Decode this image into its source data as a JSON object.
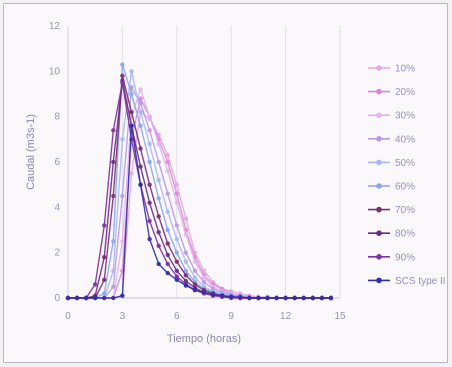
{
  "chart_data": {
    "type": "line",
    "xlabel": "Tiempo (horas)",
    "ylabel": "Caudal (m3s-1)",
    "xlim": [
      0,
      15
    ],
    "ylim": [
      0,
      12
    ],
    "xticks": [
      0,
      3,
      6,
      9,
      12,
      15
    ],
    "yticks": [
      0,
      2,
      4,
      6,
      8,
      10,
      12
    ],
    "grid": "vertical",
    "legend": "right",
    "x": [
      0,
      0.5,
      1,
      1.5,
      2,
      2.5,
      3,
      3.5,
      4,
      4.5,
      5,
      5.5,
      6,
      6.5,
      7,
      7.5,
      8,
      8.5,
      9,
      9.5,
      10,
      10.5,
      11,
      11.5,
      12,
      12.5,
      13,
      13.5,
      14,
      14.5
    ],
    "series": [
      {
        "name": "10%",
        "color": "#e6a8e0",
        "values": [
          0,
          0,
          0,
          0,
          0,
          0,
          0.1,
          5.5,
          8.2,
          7.9,
          7.2,
          6.3,
          5.0,
          3.5,
          2.0,
          1.2,
          0.7,
          0.4,
          0.3,
          0.2,
          0.1,
          0.05,
          0.05,
          0,
          0,
          0,
          0,
          0,
          0,
          0
        ]
      },
      {
        "name": "20%",
        "color": "#d98ad8",
        "values": [
          0,
          0,
          0,
          0,
          0,
          0,
          1.2,
          7.0,
          8.8,
          8.0,
          7.0,
          6.0,
          4.6,
          3.0,
          1.8,
          1.0,
          0.6,
          0.4,
          0.2,
          0.1,
          0.05,
          0,
          0,
          0,
          0,
          0,
          0,
          0,
          0,
          0
        ]
      },
      {
        "name": "30%",
        "color": "#e3b4ea",
        "values": [
          0,
          0,
          0,
          0,
          0,
          0,
          2.5,
          8.0,
          9.2,
          8.0,
          6.8,
          5.6,
          4.2,
          2.8,
          1.6,
          0.9,
          0.5,
          0.3,
          0.2,
          0.1,
          0.05,
          0,
          0,
          0,
          0,
          0,
          0,
          0,
          0,
          0
        ]
      },
      {
        "name": "40%",
        "color": "#b99ae6",
        "values": [
          0,
          0,
          0,
          0,
          0,
          0.5,
          4.5,
          9.3,
          8.6,
          7.4,
          6.0,
          4.6,
          3.2,
          2.0,
          1.2,
          0.7,
          0.4,
          0.25,
          0.15,
          0.1,
          0.05,
          0,
          0,
          0,
          0,
          0,
          0,
          0,
          0,
          0
        ]
      },
      {
        "name": "50%",
        "color": "#a9b8f0",
        "values": [
          0,
          0,
          0,
          0,
          0,
          1.2,
          7.0,
          10.0,
          8.2,
          6.8,
          5.2,
          3.8,
          2.6,
          1.6,
          0.9,
          0.5,
          0.3,
          0.2,
          0.1,
          0.05,
          0,
          0,
          0,
          0,
          0,
          0,
          0,
          0,
          0,
          0
        ]
      },
      {
        "name": "60%",
        "color": "#8aa6ec",
        "values": [
          0,
          0,
          0,
          0,
          0.2,
          2.5,
          10.3,
          9.0,
          7.6,
          6.0,
          4.4,
          3.0,
          2.0,
          1.2,
          0.7,
          0.4,
          0.25,
          0.15,
          0.1,
          0.05,
          0,
          0,
          0,
          0,
          0,
          0,
          0,
          0,
          0,
          0
        ]
      },
      {
        "name": "70%",
        "color": "#7a2f6e",
        "values": [
          0,
          0,
          0,
          0,
          0.8,
          4.5,
          9.8,
          8.2,
          6.6,
          5.0,
          3.6,
          2.4,
          1.6,
          1.0,
          0.6,
          0.35,
          0.2,
          0.1,
          0.05,
          0,
          0,
          0,
          0,
          0,
          0,
          0,
          0,
          0,
          0,
          0
        ]
      },
      {
        "name": "80%",
        "color": "#6a2a86",
        "values": [
          0,
          0,
          0,
          0.1,
          1.8,
          6.0,
          9.6,
          7.6,
          5.8,
          4.2,
          2.9,
          1.9,
          1.2,
          0.75,
          0.45,
          0.25,
          0.15,
          0.1,
          0.05,
          0,
          0,
          0,
          0,
          0,
          0,
          0,
          0,
          0,
          0,
          0
        ]
      },
      {
        "name": "90%",
        "color": "#8030a0",
        "values": [
          0,
          0,
          0,
          0.6,
          3.2,
          7.4,
          9.5,
          7.0,
          5.0,
          3.4,
          2.3,
          1.5,
          0.95,
          0.6,
          0.35,
          0.2,
          0.1,
          0.05,
          0,
          0,
          0,
          0,
          0,
          0,
          0,
          0,
          0,
          0,
          0,
          0
        ]
      },
      {
        "name": "SCS type II",
        "color": "#2f2fa8",
        "values": [
          0,
          0,
          0,
          0,
          0,
          0,
          0.1,
          7.6,
          5.0,
          2.6,
          1.5,
          1.1,
          0.8,
          0.55,
          0.35,
          0.25,
          0.15,
          0.1,
          0.05,
          0.05,
          0,
          0,
          0,
          0,
          0,
          0,
          0,
          0,
          0,
          0
        ]
      }
    ]
  }
}
